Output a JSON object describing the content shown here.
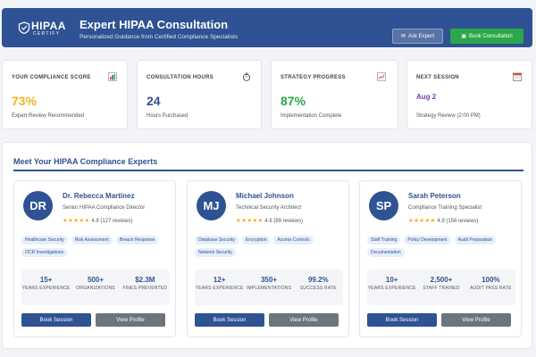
{
  "header": {
    "logo_main": "HIPAA",
    "logo_sub": "CERTIFY",
    "title": "Expert HIPAA Consultation",
    "subtitle": "Personalized Guidance from Certified Compliance Specialists",
    "ask_label": "Ask Expert",
    "book_label": "Book Consultation"
  },
  "stats": [
    {
      "title": "YOUR COMPLIANCE SCORE",
      "value": "73%",
      "caption": "Expert Review Recommended",
      "icon": "bar-chart-icon",
      "color": "#f0b41e"
    },
    {
      "title": "CONSULTATION HOURS",
      "value": "24",
      "caption": "Hours Purchased",
      "icon": "stopwatch-icon",
      "color": "#2e5293"
    },
    {
      "title": "STRATEGY PROGRESS",
      "value": "87%",
      "caption": "Implementation Complete",
      "icon": "trend-chart-icon",
      "color": "#2aa84a"
    },
    {
      "title": "NEXT SESSION",
      "value": "Aug 2",
      "caption": "Strategy Review (2:00 PM)",
      "icon": "calendar-icon",
      "color": "#7b3fb0"
    }
  ],
  "experts": {
    "section_title": "Meet Your HIPAA Compliance Experts",
    "book_label": "Book Session",
    "profile_label": "View Profile",
    "items": [
      {
        "initials": "DR",
        "name": "Dr. Rebecca Martinez",
        "role": "Senior HIPAA Compliance Director",
        "stars": "★★★★★",
        "rating": "4.9 (127 reviews)",
        "tags": [
          "Healthcare Security",
          "Risk Assessment",
          "Breach Response",
          "OCR Investigations"
        ],
        "metrics": [
          {
            "value": "15+",
            "label": "YEARS EXPERIENCE"
          },
          {
            "value": "500+",
            "label": "ORGANIZATIONS"
          },
          {
            "value": "$2.3M",
            "label": "FINES PREVENTED"
          }
        ]
      },
      {
        "initials": "MJ",
        "name": "Michael Johnson",
        "role": "Technical Security Architect",
        "stars": "★★★★★",
        "rating": "4.8 (89 reviews)",
        "tags": [
          "Database Security",
          "Encryption",
          "Access Controls",
          "Network Security"
        ],
        "metrics": [
          {
            "value": "12+",
            "label": "YEARS EXPERIENCE"
          },
          {
            "value": "350+",
            "label": "IMPLEMENTATIONS"
          },
          {
            "value": "99.2%",
            "label": "SUCCESS RATE"
          }
        ]
      },
      {
        "initials": "SP",
        "name": "Sarah Peterson",
        "role": "Compliance Training Specialist",
        "stars": "★★★★★",
        "rating": "4.9 (156 reviews)",
        "tags": [
          "Staff Training",
          "Policy Development",
          "Audit Preparation",
          "Documentation"
        ],
        "metrics": [
          {
            "value": "10+",
            "label": "YEARS EXPERIENCE"
          },
          {
            "value": "2,500+",
            "label": "STAFF TRAINED"
          },
          {
            "value": "100%",
            "label": "AUDIT PASS RATE"
          }
        ]
      }
    ]
  }
}
